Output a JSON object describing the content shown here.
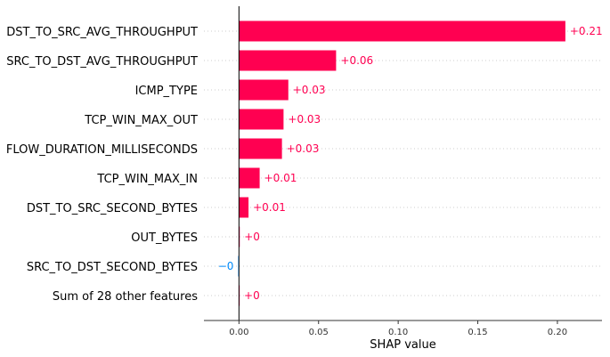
{
  "chart_data": {
    "type": "bar",
    "orientation": "horizontal",
    "categories": [
      "DST_TO_SRC_AVG_THROUGHPUT",
      "SRC_TO_DST_AVG_THROUGHPUT",
      "ICMP_TYPE",
      "TCP_WIN_MAX_OUT",
      "FLOW_DURATION_MILLISECONDS",
      "TCP_WIN_MAX_IN",
      "DST_TO_SRC_SECOND_BYTES",
      "OUT_BYTES",
      "SRC_TO_DST_SECOND_BYTES",
      "Sum of 28 other features"
    ],
    "values": [
      0.205,
      0.061,
      0.031,
      0.028,
      0.027,
      0.013,
      0.006,
      0.0005,
      -0.0005,
      0.0004
    ],
    "value_labels": [
      "+0.21",
      "+0.06",
      "+0.03",
      "+0.03",
      "+0.03",
      "+0.01",
      "+0.01",
      "+0",
      "−0",
      "+0"
    ],
    "xlabel": "SHAP value",
    "xlim": [
      -0.022,
      0.228
    ],
    "xticks": [
      0.0,
      0.05,
      0.1,
      0.15,
      0.2
    ],
    "xtick_labels": [
      "0.00",
      "0.05",
      "0.10",
      "0.15",
      "0.20"
    ],
    "grid": "horizontal dotted",
    "colors": {
      "positive": "#ff0051",
      "negative": "#008bfb",
      "zero_line": "#000000",
      "grid": "#cccccc"
    }
  }
}
